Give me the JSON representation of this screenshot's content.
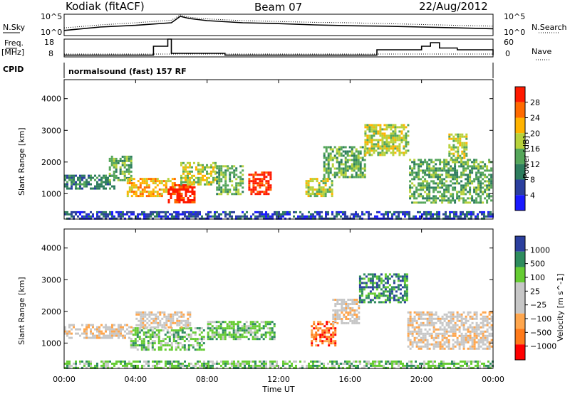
{
  "header": {
    "radar": "Kodiak (fitACF)",
    "beam": "Beam 07",
    "date": "22/Aug/2012"
  },
  "top_labels": {
    "nsky": "N.Sky",
    "nsearch": "N.Search",
    "freq_line1": "Freq.",
    "freq_line2": "[MHz]",
    "nave": "Nave",
    "cpid": "CPID",
    "cpid_text": "normalsound (fast) 157 RF"
  },
  "noise_axis": {
    "left_ticks": [
      "10^5",
      "10^0"
    ],
    "right_ticks": [
      "10^5",
      "10^0"
    ]
  },
  "freq_axis": {
    "left_ticks": [
      "18",
      "8"
    ],
    "right_ticks": [
      "60",
      "0"
    ]
  },
  "time_axis": {
    "label": "Time UT",
    "ticks": [
      "00:00",
      "04:00",
      "08:00",
      "12:00",
      "16:00",
      "20:00",
      "00:00"
    ]
  },
  "colors": {
    "power": [
      "#1a1aff",
      "#2b3f9e",
      "#2e7d5e",
      "#55a65a",
      "#b8d23b",
      "#ffb300",
      "#ff6a00",
      "#ff1a00"
    ],
    "velocity": [
      "#ff0000",
      "#ff7a1a",
      "#ffa64d",
      "#c7c7c7",
      "#c7c7c7",
      "#66cc33",
      "#2e8c5e",
      "#2b3f9e"
    ]
  },
  "chart_data": [
    {
      "type": "line",
      "panel": "noise",
      "x": [
        0,
        2,
        4,
        6,
        6.5,
        7,
        8,
        10,
        12,
        14,
        16,
        18,
        20,
        22,
        24
      ],
      "series": [
        {
          "name": "N.Sky",
          "values": [
            1.2,
            2,
            2.4,
            3,
            4.5,
            4,
            3.5,
            3,
            2.8,
            2.5,
            2.3,
            2.2,
            2,
            1.8,
            1.6
          ]
        },
        {
          "name": "N.Search",
          "values": [
            1.8,
            2.5,
            3,
            3.6,
            4.8,
            4.3,
            3.9,
            3.5,
            3.3,
            3.1,
            3,
            2.8,
            2.6,
            2.4,
            2.2
          ]
        }
      ],
      "ylim": [
        0,
        5
      ],
      "xlim": [
        0,
        24
      ]
    },
    {
      "type": "line",
      "panel": "frequency",
      "x": [
        0,
        0.5,
        2,
        4,
        5,
        5.8,
        6,
        9,
        12,
        17,
        17.5,
        20,
        20.5,
        21,
        22,
        24
      ],
      "series": [
        {
          "name": "Freq",
          "values": [
            9,
            9,
            9,
            9,
            14,
            18,
            10,
            9,
            9,
            9,
            12,
            14,
            16,
            13,
            12,
            9
          ]
        }
      ],
      "ylim": [
        8,
        18
      ],
      "xlim": [
        0,
        24
      ]
    },
    {
      "type": "heatmap",
      "panel": "power",
      "title": "",
      "xlabel": "",
      "ylabel": "Slant Range [km]",
      "xlim": [
        0,
        24
      ],
      "ylim": [
        200,
        4600
      ],
      "yticks": [
        1000,
        2000,
        3000,
        4000
      ],
      "colorbar": {
        "label": "Power [dB]",
        "ticks": [
          4,
          8,
          12,
          16,
          20,
          24,
          28
        ]
      },
      "regions": [
        {
          "t0": 0,
          "t1": 2.8,
          "r0": 1150,
          "r1": 1600,
          "level": 2
        },
        {
          "t0": 2.5,
          "t1": 3.8,
          "r0": 1400,
          "r1": 2200,
          "level": 3
        },
        {
          "t0": 3.5,
          "t1": 6.2,
          "r0": 900,
          "r1": 1500,
          "level": 5
        },
        {
          "t0": 5.8,
          "t1": 7.3,
          "r0": 700,
          "r1": 1300,
          "level": 7
        },
        {
          "t0": 6.5,
          "t1": 8.5,
          "r0": 1300,
          "r1": 2000,
          "level": 4
        },
        {
          "t0": 8.5,
          "t1": 10.0,
          "r0": 1000,
          "r1": 1900,
          "level": 3
        },
        {
          "t0": 10.3,
          "t1": 11.6,
          "r0": 1000,
          "r1": 1700,
          "level": 7
        },
        {
          "t0": 13.5,
          "t1": 15.0,
          "r0": 900,
          "r1": 1500,
          "level": 4
        },
        {
          "t0": 14.5,
          "t1": 16.8,
          "r0": 1500,
          "r1": 2500,
          "level": 3
        },
        {
          "t0": 16.8,
          "t1": 19.2,
          "r0": 2200,
          "r1": 3200,
          "level": 4
        },
        {
          "t0": 19.3,
          "t1": 23.9,
          "r0": 700,
          "r1": 2100,
          "level": 3
        },
        {
          "t0": 21.5,
          "t1": 22.5,
          "r0": 2100,
          "r1": 2900,
          "level": 4
        },
        {
          "t0": 0,
          "t1": 24,
          "r0": 200,
          "r1": 450,
          "level": 1
        }
      ]
    },
    {
      "type": "heatmap",
      "panel": "velocity",
      "title": "",
      "xlabel": "Time UT",
      "ylabel": "Slant Range [km]",
      "xlim": [
        0,
        24
      ],
      "ylim": [
        200,
        4600
      ],
      "yticks": [
        1000,
        2000,
        3000,
        4000
      ],
      "colorbar": {
        "label": "Velocity [m s^-1]",
        "ticks": [
          -1000,
          -500,
          -100,
          -25,
          25,
          100,
          500,
          1000
        ]
      },
      "regions": [
        {
          "t0": 0,
          "t1": 3.8,
          "r0": 1150,
          "r1": 1600,
          "level": 3
        },
        {
          "t0": 3.7,
          "t1": 7.8,
          "r0": 800,
          "r1": 1500,
          "level": 5
        },
        {
          "t0": 4.0,
          "t1": 7.0,
          "r0": 1500,
          "r1": 2000,
          "level": 3
        },
        {
          "t0": 8.0,
          "t1": 11.8,
          "r0": 1100,
          "r1": 1700,
          "level": 5
        },
        {
          "t0": 13.8,
          "t1": 15.2,
          "r0": 900,
          "r1": 1700,
          "level": 1
        },
        {
          "t0": 15.0,
          "t1": 16.5,
          "r0": 1600,
          "r1": 2400,
          "level": 3
        },
        {
          "t0": 16.5,
          "t1": 19.2,
          "r0": 2300,
          "r1": 3200,
          "level": 6
        },
        {
          "t0": 19.2,
          "t1": 23.9,
          "r0": 800,
          "r1": 2000,
          "level": 3
        },
        {
          "t0": 0,
          "t1": 24,
          "r0": 200,
          "r1": 450,
          "level": 5
        }
      ]
    }
  ]
}
